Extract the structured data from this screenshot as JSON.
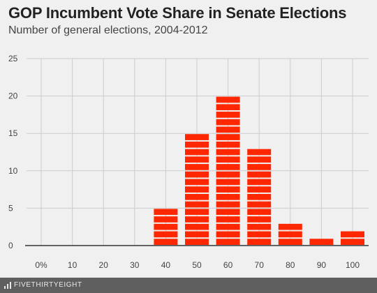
{
  "header": {
    "title": "GOP Incumbent Vote Share in Senate Elections",
    "subtitle": "Number of general elections, 2004-2012"
  },
  "footer": {
    "brand": "FIVETHIRTYEIGHT",
    "logo_icon": "fivethirtyeight-logo-icon"
  },
  "colors": {
    "bar": "#ff2700",
    "bar_stripe": "#ffffff",
    "background": "#f0f0f0",
    "grid": "#cccccc",
    "axis": "#333333",
    "tick_label": "#444444",
    "footer": "#5f5f5f"
  },
  "chart_data": {
    "type": "bar",
    "title": "GOP Incumbent Vote Share in Senate Elections",
    "subtitle": "Number of general elections, 2004-2012",
    "categories": [
      "0%",
      "10",
      "20",
      "30",
      "40",
      "50",
      "60",
      "70",
      "80",
      "90",
      "100"
    ],
    "values": [
      0,
      0,
      0,
      0,
      5,
      15,
      20,
      13,
      3,
      1,
      2
    ],
    "xlabel": "",
    "ylabel": "",
    "ylim": [
      0,
      25
    ],
    "yticks": [
      0,
      5,
      10,
      15,
      20,
      25
    ],
    "grid": true,
    "legend": "none",
    "bar_style": "stacked-units"
  }
}
